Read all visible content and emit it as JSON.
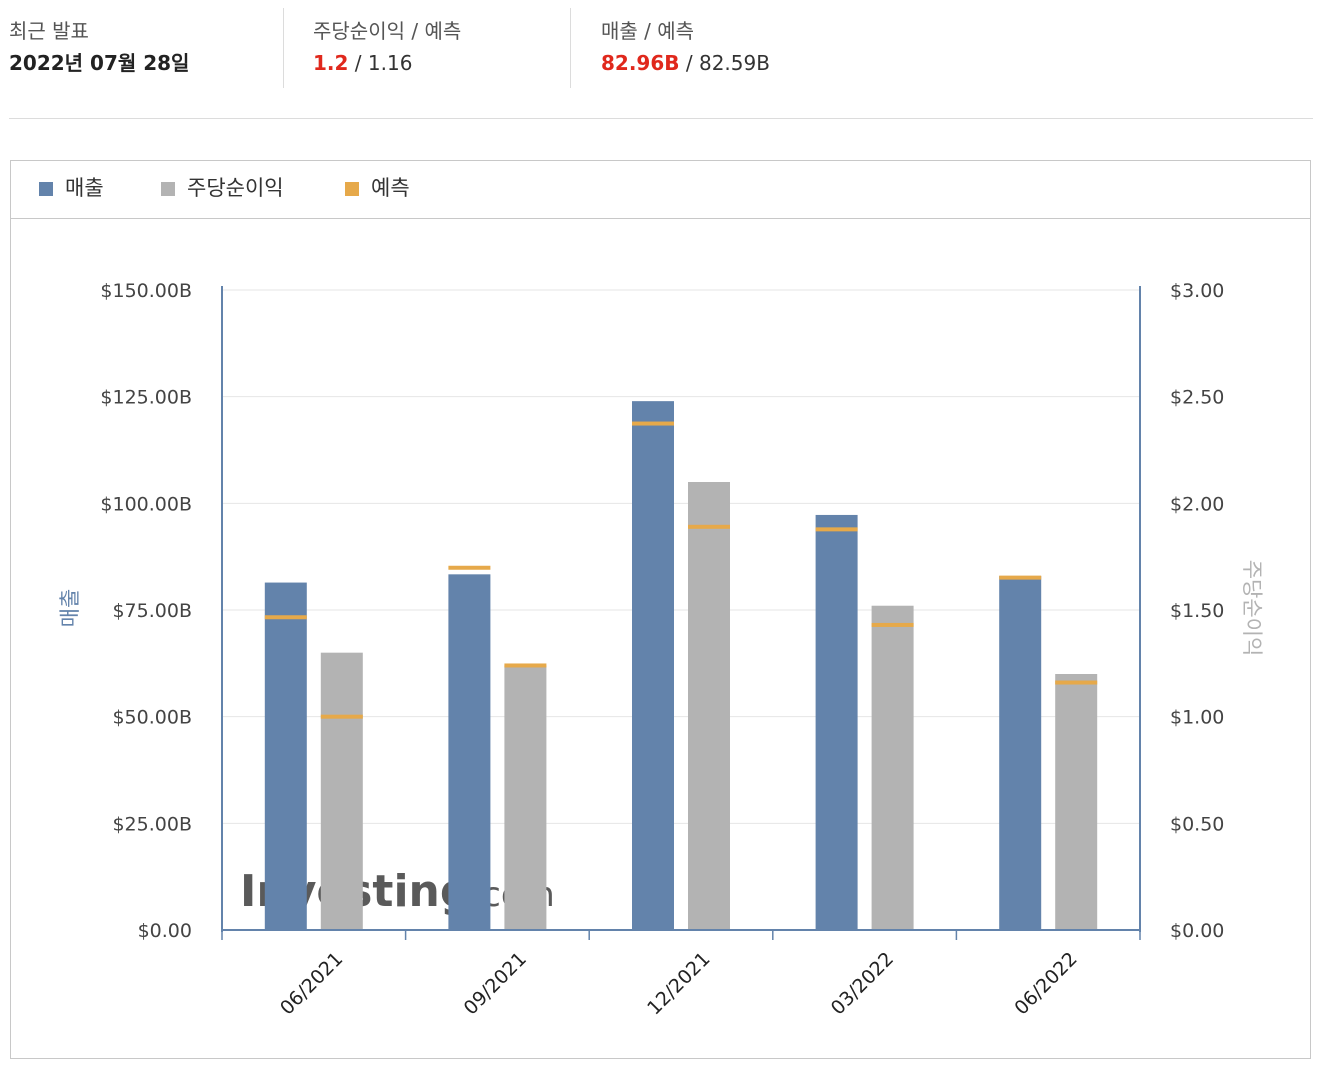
{
  "summary": {
    "latest": {
      "label": "최근 발표",
      "value": "2022년 07월 28일"
    },
    "eps": {
      "label": "주당순이익 / 예측",
      "actual": "1.2",
      "sep": " / ",
      "forecast": "1.16"
    },
    "revenue": {
      "label": "매출 / 예측",
      "actual": "82.96B",
      "sep": " / ",
      "forecast": "82.59B"
    }
  },
  "legend": [
    {
      "label": "매출",
      "color": "#6383ab"
    },
    {
      "label": "주당순이익",
      "color": "#b3b3b3"
    },
    {
      "label": "예측",
      "color": "#e6a94a"
    }
  ],
  "watermark": "Investing.com",
  "chart_data": {
    "type": "bar",
    "categories": [
      "06/2021",
      "09/2021",
      "12/2021",
      "03/2022",
      "06/2022"
    ],
    "series": [
      {
        "name": "매출",
        "axis": "left",
        "color": "#6383ab",
        "values": [
          81.43,
          83.36,
          123.95,
          97.28,
          82.96
        ],
        "forecast": [
          73.3,
          84.9,
          118.7,
          93.9,
          82.59
        ]
      },
      {
        "name": "주당순이익",
        "axis": "right",
        "color": "#b3b3b3",
        "values": [
          1.3,
          1.24,
          2.1,
          1.52,
          1.2
        ],
        "forecast": [
          1.0,
          1.24,
          1.89,
          1.43,
          1.16
        ]
      }
    ],
    "forecast_color": "#e6a94a",
    "y_left": {
      "label": "매출",
      "range": [
        0,
        150
      ],
      "ticks": [
        "$0.00",
        "$25.00B",
        "$50.00B",
        "$75.00B",
        "$100.00B",
        "$125.00B",
        "$150.00B"
      ]
    },
    "y_right": {
      "label": "주당순이익",
      "range": [
        0,
        3
      ],
      "ticks": [
        "$0.00",
        "$0.50",
        "$1.00",
        "$1.50",
        "$2.00",
        "$2.50",
        "$3.00"
      ]
    },
    "grid": true
  }
}
